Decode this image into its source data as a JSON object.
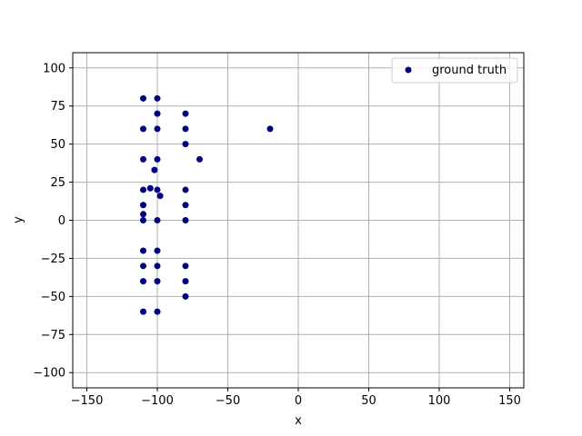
{
  "chart_data": {
    "type": "scatter",
    "title": "",
    "xlabel": "x",
    "ylabel": "y",
    "xlim": [
      -160,
      160
    ],
    "ylim": [
      -110,
      110
    ],
    "xticks": [
      -150,
      -100,
      -50,
      0,
      50,
      100,
      150
    ],
    "yticks": [
      -100,
      -75,
      -50,
      -25,
      0,
      25,
      50,
      75,
      100
    ],
    "grid": true,
    "legend_position": "top-right",
    "series": [
      {
        "name": "ground truth",
        "color": "#00007f",
        "points": [
          [
            -110,
            80
          ],
          [
            -100,
            80
          ],
          [
            -100,
            70
          ],
          [
            -80,
            70
          ],
          [
            -110,
            60
          ],
          [
            -100,
            60
          ],
          [
            -80,
            60
          ],
          [
            -20,
            60
          ],
          [
            -80,
            50
          ],
          [
            -110,
            40
          ],
          [
            -100,
            40
          ],
          [
            -70,
            40
          ],
          [
            -102,
            33
          ],
          [
            -105,
            21
          ],
          [
            -110,
            20
          ],
          [
            -100,
            20
          ],
          [
            -80,
            20
          ],
          [
            -98,
            16
          ],
          [
            -110,
            10
          ],
          [
            -80,
            10
          ],
          [
            -110,
            4
          ],
          [
            -110,
            0
          ],
          [
            -100,
            0
          ],
          [
            -80,
            0
          ],
          [
            -110,
            -20
          ],
          [
            -100,
            -20
          ],
          [
            -110,
            -30
          ],
          [
            -100,
            -30
          ],
          [
            -80,
            -30
          ],
          [
            -110,
            -40
          ],
          [
            -100,
            -40
          ],
          [
            -80,
            -40
          ],
          [
            -80,
            -50
          ],
          [
            -110,
            -60
          ],
          [
            -100,
            -60
          ]
        ]
      }
    ]
  }
}
